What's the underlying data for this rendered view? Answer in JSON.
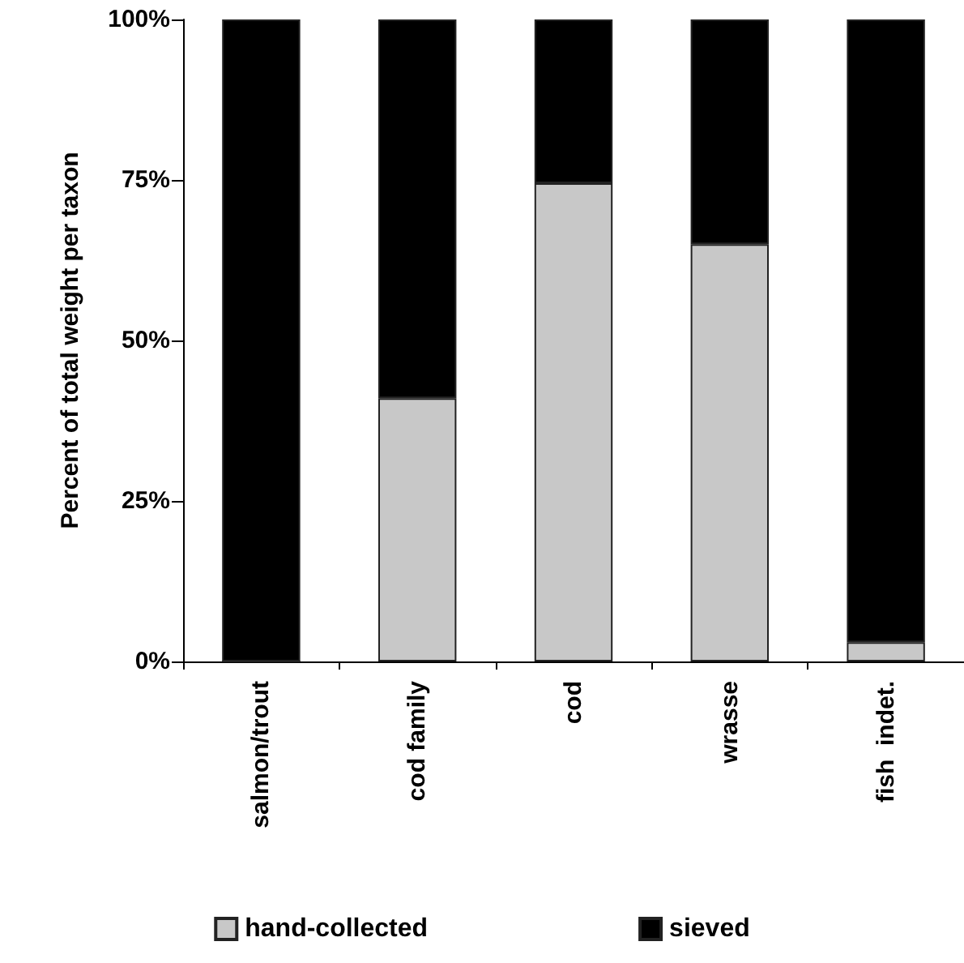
{
  "chart_data": {
    "type": "bar",
    "stacked": true,
    "ylabel": "Percent of total weight per taxon",
    "categories": [
      "salmon/trout",
      "cod family",
      "cod",
      "wrasse",
      "fish  indet."
    ],
    "series": [
      {
        "name": "hand-collected",
        "color": "#c8c8c8",
        "values": [
          0,
          41,
          74.5,
          65,
          3
        ]
      },
      {
        "name": "sieved",
        "color": "#000000",
        "values": [
          100,
          59,
          25.5,
          35,
          97
        ]
      }
    ],
    "ylim": [
      0,
      100
    ],
    "yticks": [
      {
        "value": 0,
        "label": "0%"
      },
      {
        "value": 25,
        "label": "25%"
      },
      {
        "value": 50,
        "label": "50%"
      },
      {
        "value": 75,
        "label": "75%"
      },
      {
        "value": 100,
        "label": "100%"
      }
    ],
    "grid": false,
    "legend": "bottom"
  }
}
